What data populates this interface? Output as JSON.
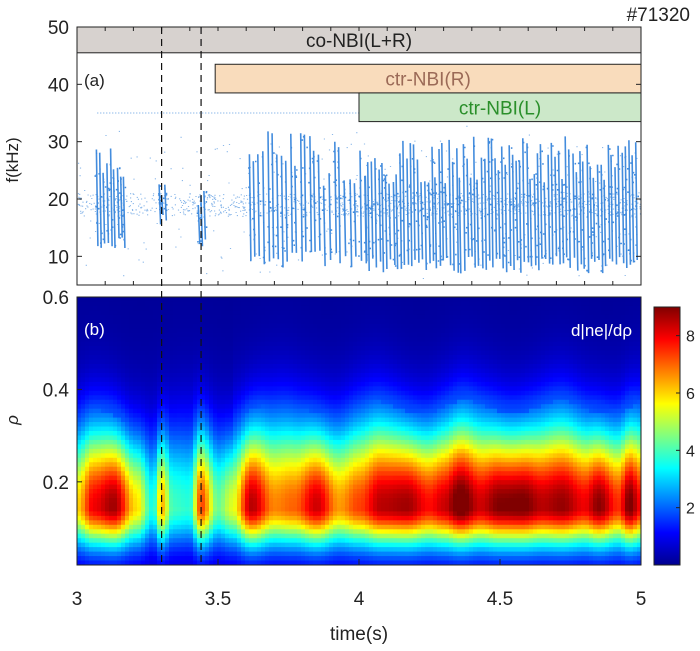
{
  "shot": "#71320",
  "colors": {
    "co": "#d7d2cf",
    "ctrR": "#f9dcbc",
    "ctrL": "#cce8c9",
    "ctrRText": "#9b6a57",
    "ctrLText": "#2a8f2a",
    "spec": "#2f7fd9"
  },
  "chart_data": [
    {
      "type": "scatter",
      "panel_label": "(a)",
      "xlabel": "",
      "ylabel": "f(kHz)",
      "xlim": [
        3,
        5
      ],
      "ylim": [
        5,
        50
      ],
      "yticks": [
        "10",
        "20",
        "30",
        "40",
        "50"
      ],
      "xticks": [],
      "vlines": [
        3.3,
        3.44
      ],
      "heating_bars": [
        {
          "label": "co-NBI(L+R)",
          "start": 3.0,
          "end": 5.0,
          "y_low": 45.5,
          "y_high": 50,
          "color_key": "co",
          "text_color_key": "co_text"
        },
        {
          "label": "ctr-NBI(R)",
          "start": 3.49,
          "end": 5.0,
          "y_low": 38.5,
          "y_high": 43.5,
          "color_key": "ctrR"
        },
        {
          "label": "ctr-NBI(L)",
          "start": 4.0,
          "end": 5.0,
          "y_low": 33.5,
          "y_high": 38.5,
          "color_key": "ctrL"
        }
      ],
      "features": {
        "horizontal_line_khz": 35,
        "band_center_khz": 19,
        "bursts": [
          {
            "start": 3.07,
            "end": 3.17,
            "low": 11,
            "high": 29,
            "step": 0.012
          },
          {
            "start": 3.29,
            "end": 3.31,
            "low": 15,
            "high": 23,
            "step": 0.01
          },
          {
            "start": 3.43,
            "end": 3.45,
            "low": 11,
            "high": 23,
            "step": 0.01
          },
          {
            "start": 3.61,
            "end": 3.84,
            "low": 8,
            "high": 32,
            "step": 0.0165
          },
          {
            "start": 3.84,
            "end": 4.02,
            "low": 8,
            "high": 30,
            "step": 0.018
          },
          {
            "start": 4.02,
            "end": 4.99,
            "low": 7,
            "high": 31,
            "step": 0.0125
          }
        ]
      }
    },
    {
      "type": "heatmap",
      "panel_label": "(b)",
      "title": "d|ne|/dρ",
      "xlabel": "time(s)",
      "ylabel": "ρ",
      "xlim": [
        3,
        5
      ],
      "ylim": [
        0.02,
        0.6
      ],
      "xticks": [
        "3",
        "3.5",
        "4",
        "4.5",
        "5"
      ],
      "yticks": [
        "0.2",
        "0.4",
        "0.6"
      ],
      "colorbar": {
        "min": 0,
        "max": 9,
        "ticks": [
          "2",
          "4",
          "6",
          "8"
        ],
        "colormap": "jet"
      },
      "peak_rho": 0.15,
      "time_profile": [
        {
          "t": 3.0,
          "peak": 5.5
        },
        {
          "t": 3.06,
          "peak": 7.5
        },
        {
          "t": 3.13,
          "peak": 8.2
        },
        {
          "t": 3.21,
          "peak": 5.4
        },
        {
          "t": 3.27,
          "peak": 3.0
        },
        {
          "t": 3.3,
          "peak": 5.8
        },
        {
          "t": 3.34,
          "peak": 3.4
        },
        {
          "t": 3.4,
          "peak": 3.2
        },
        {
          "t": 3.44,
          "peak": 6.8
        },
        {
          "t": 3.5,
          "peak": 3.8
        },
        {
          "t": 3.55,
          "peak": 4.8
        },
        {
          "t": 3.62,
          "peak": 8.0
        },
        {
          "t": 3.7,
          "peak": 6.2
        },
        {
          "t": 3.77,
          "peak": 6.5
        },
        {
          "t": 3.85,
          "peak": 7.8
        },
        {
          "t": 3.93,
          "peak": 6.0
        },
        {
          "t": 4.0,
          "peak": 6.8
        },
        {
          "t": 4.08,
          "peak": 8.0
        },
        {
          "t": 4.17,
          "peak": 8.2
        },
        {
          "t": 4.25,
          "peak": 7.3
        },
        {
          "t": 4.3,
          "peak": 7.8
        },
        {
          "t": 4.36,
          "peak": 8.9
        },
        {
          "t": 4.43,
          "peak": 7.8
        },
        {
          "t": 4.5,
          "peak": 8.5
        },
        {
          "t": 4.58,
          "peak": 8.6
        },
        {
          "t": 4.65,
          "peak": 8.0
        },
        {
          "t": 4.72,
          "peak": 8.3
        },
        {
          "t": 4.8,
          "peak": 7.5
        },
        {
          "t": 4.85,
          "peak": 8.4
        },
        {
          "t": 4.92,
          "peak": 7.0
        },
        {
          "t": 4.96,
          "peak": 8.6
        },
        {
          "t": 5.0,
          "peak": 7.4
        }
      ]
    }
  ]
}
